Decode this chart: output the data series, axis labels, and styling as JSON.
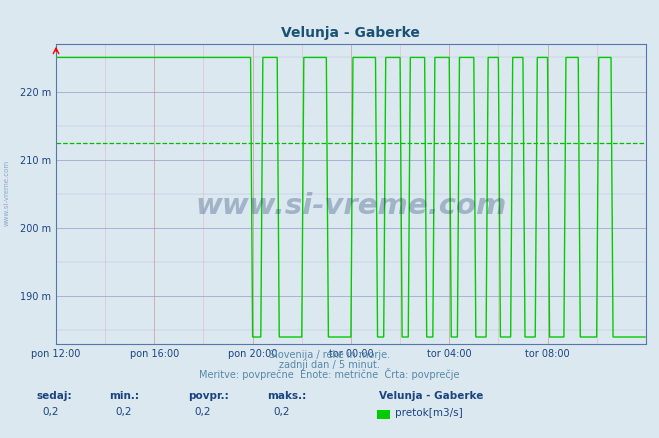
{
  "title": "Velunja - Gaberke",
  "title_color": "#1a5276",
  "bg_color": "#dce8f0",
  "plot_bg_color": "#dce8f0",
  "ylim": [
    183,
    227
  ],
  "xlim": [
    0,
    288
  ],
  "yticks": [
    190,
    200,
    210,
    220
  ],
  "ytick_labels": [
    "190 m",
    "200 m",
    "210 m",
    "220 m"
  ],
  "xtick_positions": [
    0,
    48,
    96,
    144,
    192,
    240
  ],
  "xtick_labels": [
    "pon 12:00",
    "pon 16:00",
    "pon 20:00",
    "tor 00:00",
    "tor 04:00",
    "tor 08:00"
  ],
  "avg_line_y": 212.5,
  "avg_line_color": "#00bb00",
  "line_color": "#00cc00",
  "line_width": 1.0,
  "watermark": "www.si-vreme.com",
  "watermark_color": "#1a3a6a",
  "watermark_alpha": 0.3,
  "footer_line1": "Slovenija / reke in morje.",
  "footer_line2": "zadnji dan / 5 minut.",
  "footer_line3": "Meritve: povprečne  Enote: metrične  Črta: povprečje",
  "footer_color": "#5588aa",
  "legend_title": "Velunja - Gaberke",
  "legend_label": "pretok[m3/s]",
  "legend_color": "#00cc00",
  "stat_labels": [
    "sedaj:",
    "min.:",
    "povpr.:",
    "maks.:"
  ],
  "stat_values": [
    "0,2",
    "0,2",
    "0,2",
    "0,2"
  ],
  "stat_color": "#1a4480",
  "left_label": "www.si-vreme.com",
  "data_x": [
    0,
    1,
    95,
    96,
    100,
    101,
    108,
    109,
    120,
    121,
    132,
    133,
    144,
    145,
    156,
    157,
    160,
    161,
    168,
    169,
    172,
    173,
    180,
    181,
    184,
    185,
    192,
    193,
    196,
    197,
    204,
    205,
    210,
    211,
    216,
    217,
    222,
    223,
    228,
    229,
    234,
    235,
    240,
    241,
    248,
    249,
    255,
    256,
    264,
    265,
    271,
    272,
    288
  ],
  "data_y": [
    225,
    225,
    225,
    184,
    184,
    225,
    225,
    184,
    184,
    225,
    225,
    184,
    184,
    225,
    225,
    184,
    184,
    225,
    225,
    184,
    184,
    225,
    225,
    184,
    184,
    225,
    225,
    184,
    184,
    225,
    225,
    184,
    184,
    225,
    225,
    184,
    184,
    225,
    225,
    184,
    184,
    225,
    225,
    184,
    184,
    225,
    225,
    184,
    184,
    225,
    225,
    184,
    184
  ]
}
